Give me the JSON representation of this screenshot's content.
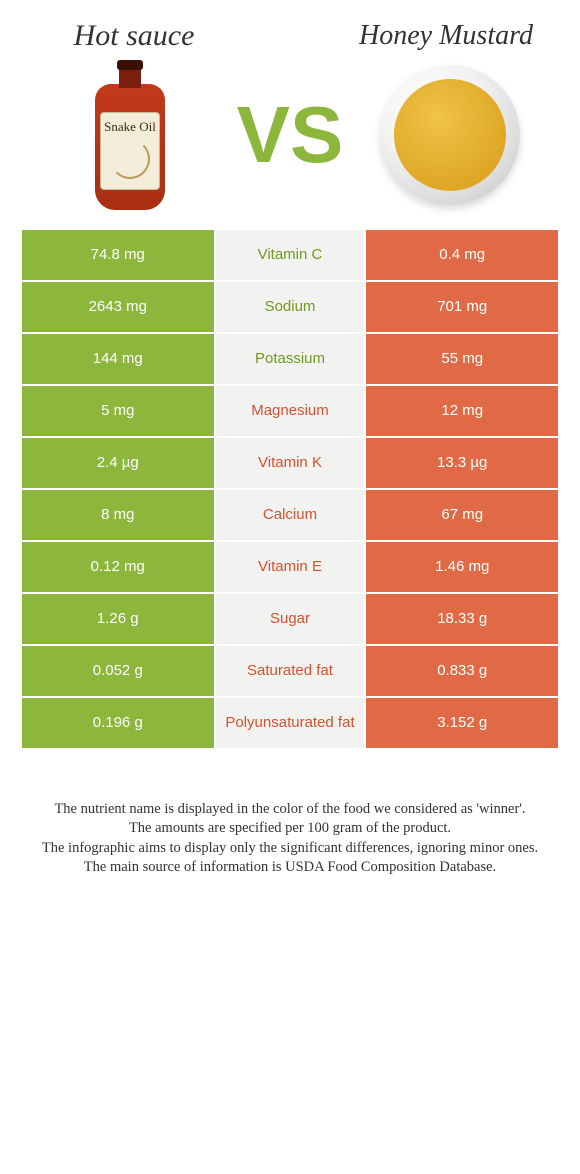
{
  "colors": {
    "green": "#8cb63c",
    "orange": "#e06a46",
    "mid_bg": "#f2f2f0",
    "mid_green_text": "#6e9a1f",
    "mid_orange_text": "#d4532e",
    "page_bg": "#ffffff",
    "body_text": "#333333"
  },
  "header": {
    "left_title": "Hot sauce",
    "right_title": "Honey Mustard",
    "vs_label": "VS",
    "left_icon": "hot-sauce-bottle",
    "left_label_text": "Snake Oil",
    "right_icon": "mustard-bowl"
  },
  "table": {
    "rows": [
      {
        "left": "74.8 mg",
        "name": "Vitamin C",
        "right": "0.4 mg",
        "winner": "left"
      },
      {
        "left": "2643 mg",
        "name": "Sodium",
        "right": "701 mg",
        "winner": "left"
      },
      {
        "left": "144 mg",
        "name": "Potassium",
        "right": "55 mg",
        "winner": "left"
      },
      {
        "left": "5 mg",
        "name": "Magnesium",
        "right": "12 mg",
        "winner": "right"
      },
      {
        "left": "2.4 µg",
        "name": "Vitamin K",
        "right": "13.3 µg",
        "winner": "right"
      },
      {
        "left": "8 mg",
        "name": "Calcium",
        "right": "67 mg",
        "winner": "right"
      },
      {
        "left": "0.12 mg",
        "name": "Vitamin E",
        "right": "1.46 mg",
        "winner": "right"
      },
      {
        "left": "1.26 g",
        "name": "Sugar",
        "right": "18.33 g",
        "winner": "right"
      },
      {
        "left": "0.052 g",
        "name": "Saturated fat",
        "right": "0.833 g",
        "winner": "right"
      },
      {
        "left": "0.196 g",
        "name": "Polyunsaturated fat",
        "right": "3.152 g",
        "winner": "right"
      }
    ]
  },
  "footer": {
    "line1": "The nutrient name is displayed in the color of the food we considered as 'winner'.",
    "line2": "The amounts are specified per 100 gram of the product.",
    "line3": "The infographic aims to display only the significant differences, ignoring minor ones.",
    "line4": "The main source of information is USDA Food Composition Database."
  }
}
